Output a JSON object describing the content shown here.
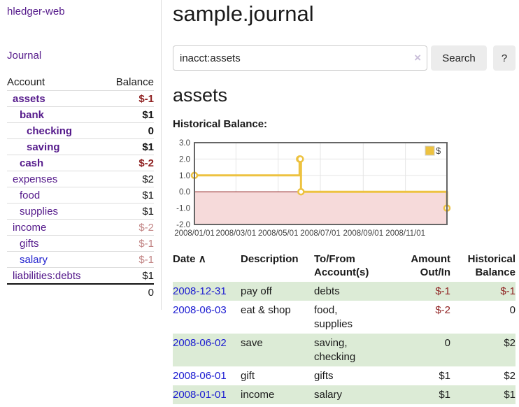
{
  "colors": {
    "link_purple": "#551a8b",
    "link_blue": "#2323cf",
    "negative_red": "#8e1f1f",
    "negative_muted": "#c28585",
    "row_stripe_green": "#dcebd6",
    "chart_line_gold": "#edc240",
    "chart_negative_fill": "#f6dada",
    "chart_zero_line": "#8b1a1a"
  },
  "sidebar": {
    "brand": "hledger-web",
    "nav": {
      "journal": "Journal"
    },
    "headers": {
      "account": "Account",
      "balance": "Balance"
    },
    "accounts": [
      {
        "name": "assets",
        "balance": "$-1"
      },
      {
        "name": "bank",
        "balance": "$1"
      },
      {
        "name": "checking",
        "balance": "0"
      },
      {
        "name": "saving",
        "balance": "$1"
      },
      {
        "name": "cash",
        "balance": "$-2"
      },
      {
        "name": "expenses",
        "balance": "$2"
      },
      {
        "name": "food",
        "balance": "$1"
      },
      {
        "name": "supplies",
        "balance": "$1"
      },
      {
        "name": "income",
        "balance": "$-2"
      },
      {
        "name": "gifts",
        "balance": "$-1"
      },
      {
        "name": "salary",
        "balance": "$-1"
      },
      {
        "name": "liabilities:debts",
        "balance": "$1"
      }
    ],
    "total": "0"
  },
  "main": {
    "title": "sample.journal",
    "search": {
      "value": "inacct:assets",
      "clear": "×",
      "button": "Search",
      "help": "?"
    },
    "account_title": "assets",
    "chart_heading": "Historical Balance:"
  },
  "chart_data": {
    "type": "line",
    "step": true,
    "title": "Historical Balance",
    "x_domain": [
      "2008-01-01",
      "2008-12-31"
    ],
    "ylim": [
      -2,
      3
    ],
    "yticks": [
      3.0,
      2.0,
      1.0,
      0.0,
      -1.0,
      -2.0
    ],
    "xticks": [
      "2008/01/01",
      "2008/03/01",
      "2008/05/01",
      "2008/07/01",
      "2008/09/01",
      "2008/11/01"
    ],
    "series": [
      {
        "name": "$",
        "color": "#edc240",
        "points": [
          [
            "2008-01-01",
            1
          ],
          [
            "2008-06-01",
            2
          ],
          [
            "2008-06-02",
            2
          ],
          [
            "2008-06-03",
            0
          ],
          [
            "2008-12-31",
            -1
          ]
        ]
      }
    ],
    "legend_position": "top-right",
    "grid": true,
    "negative_fill": "#f6dada",
    "zero_line_color": "#8b1a1a"
  },
  "register": {
    "headers": {
      "date": "Date",
      "sort_indicator": "∧",
      "description": "Description",
      "accounts": "To/From Account(s)",
      "amount": "Amount Out/In",
      "balance": "Historical Balance"
    },
    "rows": [
      {
        "date": "2008-12-31",
        "description": "pay off",
        "accounts": "debts",
        "amount": "$-1",
        "balance": "$-1"
      },
      {
        "date": "2008-06-03",
        "description": "eat & shop",
        "accounts": "food, supplies",
        "amount": "$-2",
        "balance": "0"
      },
      {
        "date": "2008-06-02",
        "description": "save",
        "accounts": "saving, checking",
        "amount": "0",
        "balance": "$2"
      },
      {
        "date": "2008-06-01",
        "description": "gift",
        "accounts": "gifts",
        "amount": "$1",
        "balance": "$2"
      },
      {
        "date": "2008-01-01",
        "description": "income",
        "accounts": "salary",
        "amount": "$1",
        "balance": "$1"
      }
    ]
  }
}
